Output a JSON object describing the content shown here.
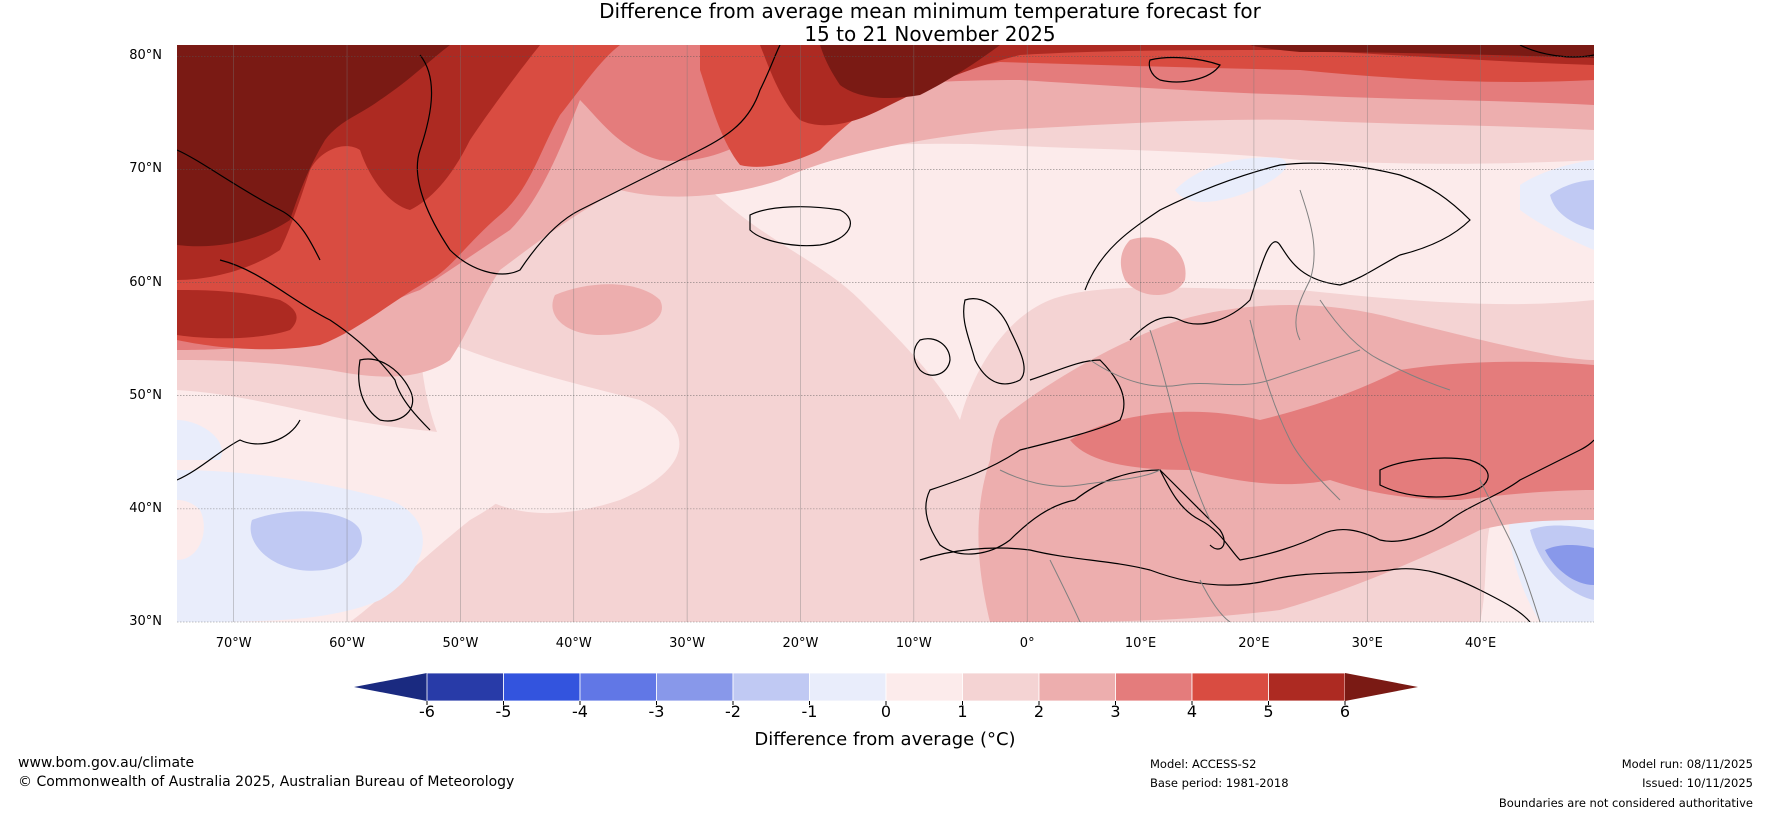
{
  "title": {
    "line1": "Difference from average mean minimum temperature forecast for",
    "line2": "15 to 21 November 2025"
  },
  "map": {
    "lat_labels": [
      "80°N",
      "70°N",
      "60°N",
      "50°N",
      "40°N",
      "30°N"
    ],
    "lon_labels": [
      "70°W",
      "60°W",
      "50°W",
      "40°W",
      "30°W",
      "20°W",
      "10°W",
      "0°",
      "10°E",
      "20°E",
      "30°E",
      "40°E"
    ],
    "lat_values": [
      80,
      70,
      60,
      50,
      40,
      30
    ],
    "lon_values": [
      -70,
      -60,
      -50,
      -40,
      -30,
      -20,
      -10,
      0,
      10,
      20,
      30,
      40
    ],
    "extent": {
      "lon_min": -75,
      "lon_max": 50,
      "lat_min": 30,
      "lat_max": 81
    }
  },
  "colorbar": {
    "ticks": [
      "-6",
      "-5",
      "-4",
      "-3",
      "-2",
      "-1",
      "0",
      "1",
      "2",
      "3",
      "4",
      "5",
      "6"
    ],
    "colors": [
      "#283ba8",
      "#3354de",
      "#6177e6",
      "#8898ea",
      "#c0c9f3",
      "#e9edfb",
      "#fcebeb",
      "#f4d3d3",
      "#edaeae",
      "#e47c7c",
      "#d94c41",
      "#ad2a22"
    ],
    "under_color": "#1a2a80",
    "over_color": "#7a1a14",
    "label": "Difference from average (°C)"
  },
  "footer": {
    "website": "www.bom.gov.au/climate",
    "copyright": "© Commonwealth of Australia 2025, Australian Bureau of Meteorology",
    "model": "Model: ACCESS-S2",
    "base_period": "Base period: 1981-2018",
    "model_run": "Model run: 08/11/2025",
    "issued": "Issued: 10/11/2025",
    "disclaimer": "Boundaries are not considered authoritative"
  }
}
